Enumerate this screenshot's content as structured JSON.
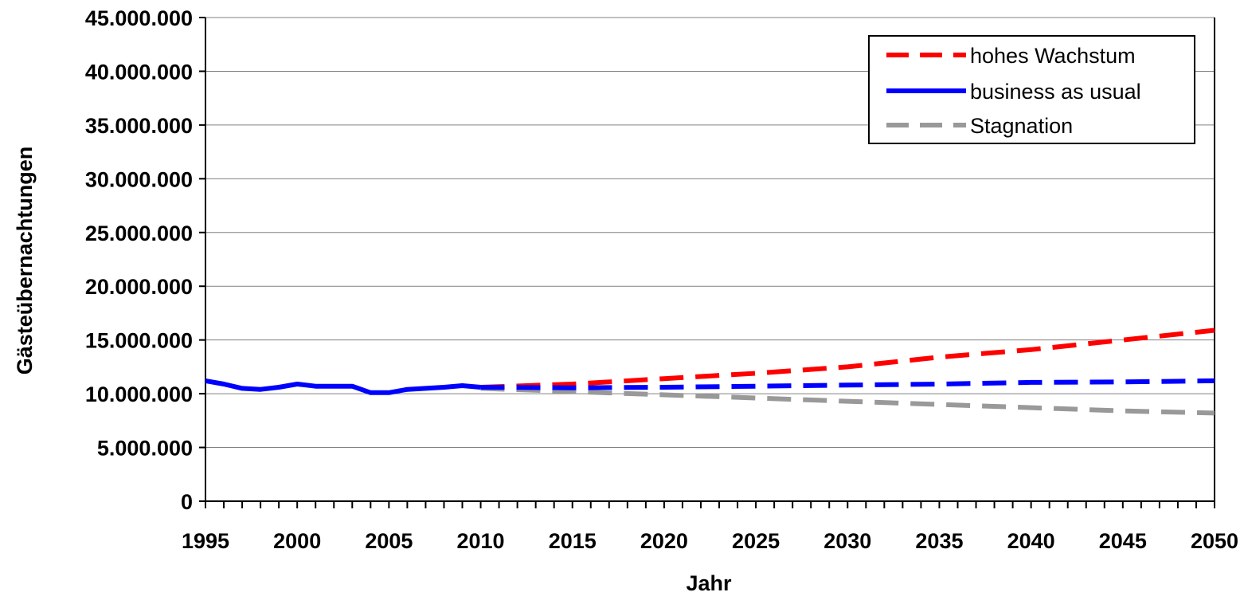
{
  "chart_data": {
    "type": "line",
    "xlabel": "Jahr",
    "ylabel": "Gästeübernachtungen",
    "xlim": [
      1995,
      2050
    ],
    "ylim": [
      0,
      45000000
    ],
    "x_ticks": [
      "1995",
      "2000",
      "2005",
      "2010",
      "2015",
      "2020",
      "2025",
      "2030",
      "2035",
      "2040",
      "2045",
      "2050"
    ],
    "y_ticks": [
      "0",
      "5.000.000",
      "10.000.000",
      "15.000.000",
      "20.000.000",
      "25.000.000",
      "30.000.000",
      "35.000.000",
      "40.000.000",
      "45.000.000"
    ],
    "grid": true,
    "legend_position": "top-right",
    "historical": {
      "color": "#0000ff",
      "x": [
        1995,
        1996,
        1997,
        1998,
        1999,
        2000,
        2001,
        2002,
        2003,
        2004,
        2005,
        2006,
        2007,
        2008,
        2009,
        2010
      ],
      "y": [
        11200000,
        10900000,
        10500000,
        10400000,
        10600000,
        10900000,
        10700000,
        10700000,
        10700000,
        10100000,
        10100000,
        10400000,
        10500000,
        10600000,
        10750000,
        10600000
      ]
    },
    "series": [
      {
        "name": "hohes Wachstum",
        "color": "#ff0000",
        "style": "dashed",
        "x": [
          2010,
          2015,
          2020,
          2025,
          2030,
          2035,
          2040,
          2045,
          2050
        ],
        "y": [
          10600000,
          10900000,
          11400000,
          11900000,
          12500000,
          13400000,
          14100000,
          15000000,
          15900000
        ]
      },
      {
        "name": "business as usual",
        "color": "#0000ff",
        "style": "dashed",
        "x": [
          2010,
          2015,
          2020,
          2025,
          2030,
          2035,
          2040,
          2045,
          2050
        ],
        "y": [
          10600000,
          10550000,
          10600000,
          10700000,
          10800000,
          10900000,
          11050000,
          11100000,
          11200000
        ]
      },
      {
        "name": "Stagnation",
        "color": "#999999",
        "style": "dashed",
        "x": [
          2010,
          2015,
          2020,
          2025,
          2030,
          2035,
          2040,
          2045,
          2050
        ],
        "y": [
          10500000,
          10200000,
          9900000,
          9600000,
          9300000,
          9000000,
          8700000,
          8400000,
          8200000
        ]
      }
    ]
  }
}
